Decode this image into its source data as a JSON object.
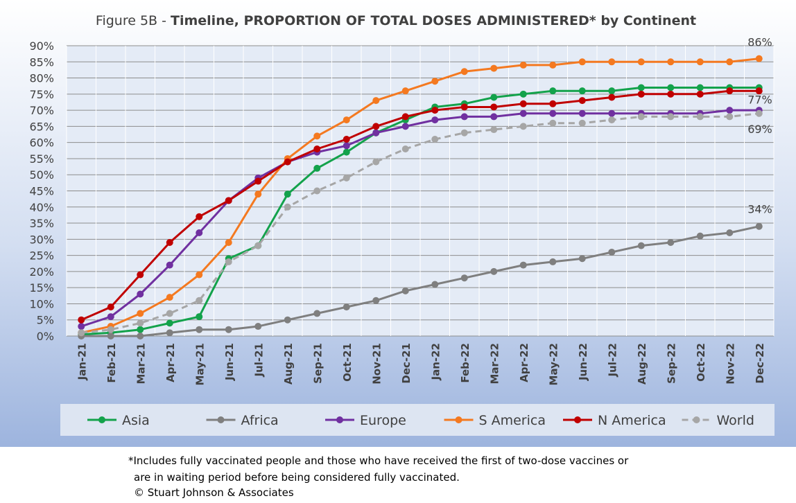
{
  "chart_data": {
    "type": "line",
    "title_prefix": "Figure 5B - ",
    "title_bold": "Timeline, PROPORTION OF TOTAL DOSES ADMINISTERED* by Continent",
    "xlabel": "",
    "ylabel": "",
    "ylim": [
      0,
      90
    ],
    "ytick_step": 5,
    "ytick_suffix": "%",
    "grid": true,
    "legend_position": "bottom",
    "categories": [
      "Jan-21",
      "Feb-21",
      "Mar-21",
      "Apr-21",
      "May-21",
      "Jun-21",
      "Jul-21",
      "Aug-21",
      "Sep-21",
      "Oct-21",
      "Nov-21",
      "Dec-21",
      "Jan-22",
      "Feb-22",
      "Mar-22",
      "Apr-22",
      "May-22",
      "Jun-22",
      "Jul-22",
      "Aug-22",
      "Sep-22",
      "Oct-22",
      "Nov-22",
      "Dec-22"
    ],
    "series": [
      {
        "name": "Asia",
        "color": "#13a24b",
        "dashed": false,
        "values": [
          0.5,
          1,
          2,
          4,
          6,
          24,
          28,
          44,
          52,
          57,
          63,
          67,
          71,
          72,
          74,
          75,
          76,
          76,
          76,
          77,
          77,
          77,
          77,
          77
        ]
      },
      {
        "name": "Africa",
        "color": "#7f7f7f",
        "dashed": false,
        "values": [
          0,
          0,
          0,
          1,
          2,
          2,
          3,
          5,
          7,
          9,
          11,
          14,
          16,
          18,
          20,
          22,
          23,
          24,
          26,
          28,
          29,
          31,
          32,
          34
        ]
      },
      {
        "name": "Europe",
        "color": "#7030a0",
        "dashed": false,
        "values": [
          3,
          6,
          13,
          22,
          32,
          42,
          49,
          54,
          57,
          59,
          63,
          65,
          67,
          68,
          68,
          69,
          69,
          69,
          69,
          69,
          69,
          69,
          70,
          70
        ]
      },
      {
        "name": "S America",
        "color": "#f47920",
        "dashed": false,
        "values": [
          1,
          3,
          7,
          12,
          19,
          29,
          44,
          55,
          62,
          67,
          73,
          76,
          79,
          82,
          83,
          84,
          84,
          85,
          85,
          85,
          85,
          85,
          85,
          86
        ]
      },
      {
        "name": "N America",
        "color": "#c00000",
        "dashed": false,
        "values": [
          5,
          9,
          19,
          29,
          37,
          42,
          48,
          54,
          58,
          61,
          65,
          68,
          70,
          71,
          71,
          72,
          72,
          73,
          74,
          75,
          75,
          75,
          76,
          76
        ]
      },
      {
        "name": "World",
        "color": "#a6a6a6",
        "dashed": true,
        "values": [
          1,
          2,
          4,
          7,
          11,
          23,
          28,
          40,
          45,
          49,
          54,
          58,
          61,
          63,
          64,
          65,
          66,
          66,
          67,
          68,
          68,
          68,
          68,
          69
        ]
      }
    ],
    "end_labels": [
      {
        "series": "S America",
        "text": "86%"
      },
      {
        "series": "Asia",
        "text": "77%"
      },
      {
        "series": "World",
        "text": "69%"
      },
      {
        "series": "Africa",
        "text": "34%"
      }
    ],
    "footnote": [
      "*Includes fully vaccinated people and those who have received the first of two-dose vaccines or",
      "are in waiting period before being considered fully vaccinated.",
      "© Stuart Johnson & Associates"
    ]
  }
}
